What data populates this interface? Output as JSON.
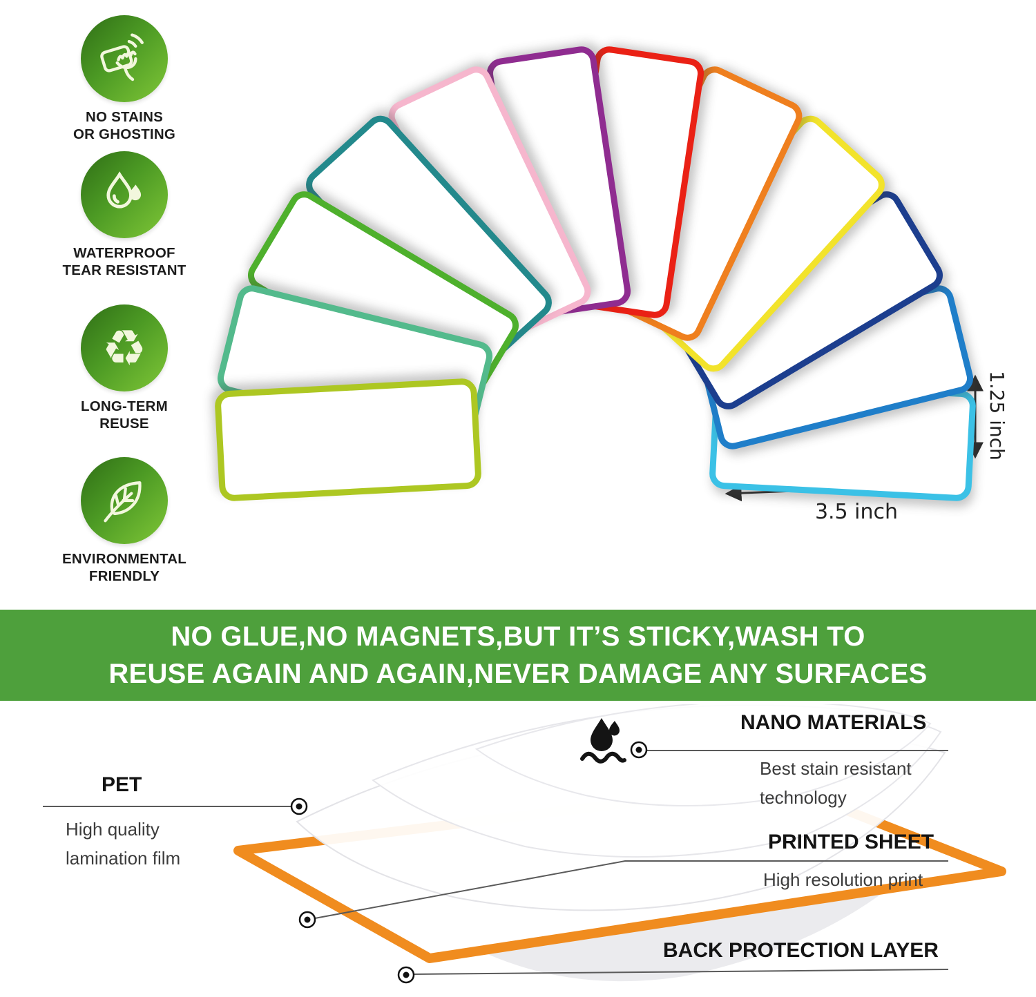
{
  "features": [
    {
      "icon": "eraser-wipe-icon",
      "lines": [
        "NO STAINS",
        "OR GHOSTING"
      ]
    },
    {
      "icon": "water-drops-icon",
      "lines": [
        "WATERPROOF",
        "TEAR RESISTANT"
      ]
    },
    {
      "icon": "recycle-icon",
      "lines": [
        "LONG-TERM",
        "REUSE"
      ]
    },
    {
      "icon": "leaf-icon",
      "lines": [
        "ENVIRONMENTAL",
        "FRIENDLY"
      ]
    }
  ],
  "fan": {
    "cards": [
      {
        "name": "lime",
        "color": "#adc722"
      },
      {
        "name": "mint-green",
        "color": "#53ba8c"
      },
      {
        "name": "green",
        "color": "#4eb02c"
      },
      {
        "name": "teal",
        "color": "#23898c"
      },
      {
        "name": "pink",
        "color": "#f6b6cd"
      },
      {
        "name": "purple",
        "color": "#8f2c90"
      },
      {
        "name": "red",
        "color": "#ea2115"
      },
      {
        "name": "orange",
        "color": "#ef7f1e"
      },
      {
        "name": "yellow",
        "color": "#f2e32b"
      },
      {
        "name": "navy",
        "color": "#1c3e8e"
      },
      {
        "name": "blue",
        "color": "#1f7ec9"
      },
      {
        "name": "sky-blue",
        "color": "#3bc1e6"
      }
    ],
    "height_dimension": "1.25 inch",
    "width_dimension": "3.5 inch"
  },
  "banner": {
    "background": "#4ea03c",
    "line1": "NO GLUE,NO MAGNETS,BUT IT’S STICKY,WASH TO",
    "line2": "REUSE AGAIN AND AGAIN,NEVER DAMAGE ANY SURFACES"
  },
  "diagram": {
    "sheet_border_color": "#f08c1f",
    "pet": {
      "title": "PET",
      "desc": [
        "High quality",
        "lamination film"
      ]
    },
    "nano": {
      "title": "NANO MATERIALS",
      "desc": [
        "Best stain resistant",
        "technology"
      ]
    },
    "printed": {
      "title": "PRINTED SHEET",
      "desc": [
        "High resolution print"
      ]
    },
    "back": {
      "title": "BACK PROTECTION LAYER",
      "desc": []
    }
  }
}
